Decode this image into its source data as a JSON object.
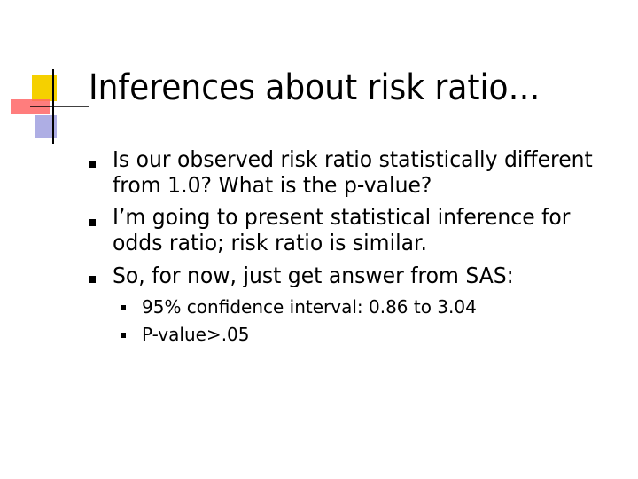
{
  "title": "Inferences about risk ratio…",
  "bullets": [
    {
      "text": "Is our observed risk ratio statistically different from 1.0? What is the p-value?"
    },
    {
      "text": "I’m going to present statistical inference for odds ratio; risk ratio is similar."
    },
    {
      "text": "So, for now, just get answer from SAS:",
      "sub": [
        "95% confidence interval: 0.86 to 3.04",
        "P-value>.05"
      ]
    }
  ]
}
